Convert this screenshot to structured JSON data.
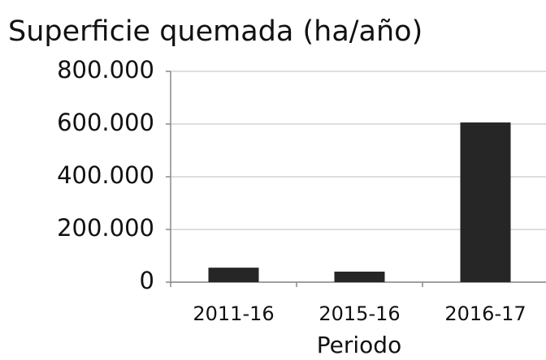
{
  "chart_data": {
    "type": "bar",
    "title": "Superficie quemada (ha/año)",
    "x_label": "Periodo",
    "categories": [
      "2011-16",
      "2015-16",
      "2016-17"
    ],
    "values": [
      55000,
      40000,
      606000
    ],
    "color": "#262626",
    "ylim": [
      0,
      800000
    ],
    "yticks": [
      0,
      {
        "value": 200000,
        "label": "200.000"
      },
      {
        "value": 400000,
        "label": "400.000"
      },
      {
        "value": 600000,
        "label": "600.000"
      },
      {
        "value": 800000,
        "label": "800.000"
      }
    ],
    "grid": true
  }
}
